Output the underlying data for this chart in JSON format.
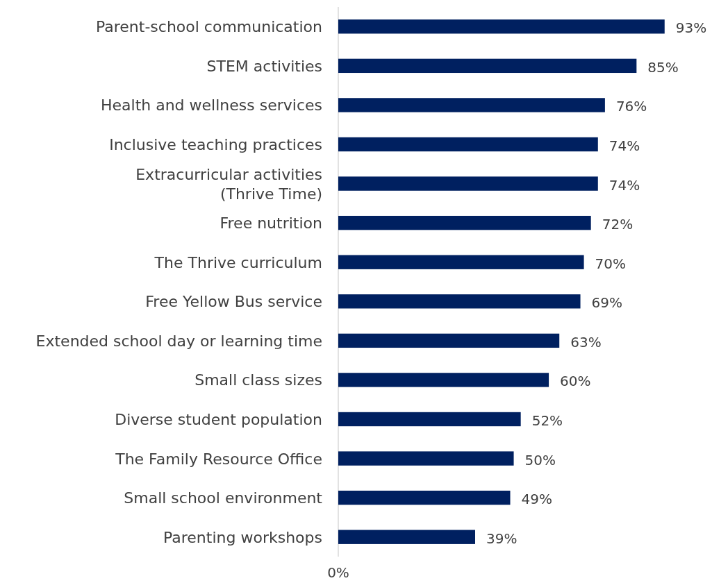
{
  "chart_data": {
    "type": "bar",
    "orientation": "horizontal",
    "categories": [
      "Parent-school communication",
      "STEM activities",
      "Health and wellness services",
      "Inclusive teaching practices",
      "Extracurricular activities\n(Thrive Time)",
      "Free nutrition",
      "The Thrive curriculum",
      "Free Yellow Bus service",
      "Extended school day or learning time",
      "Small class sizes",
      "Diverse student population",
      "The Family Resource Office",
      "Small school environment",
      "Parenting workshops"
    ],
    "values": [
      93,
      85,
      76,
      74,
      74,
      72,
      70,
      69,
      63,
      60,
      52,
      50,
      49,
      39
    ],
    "value_labels": [
      "93%",
      "85%",
      "76%",
      "74%",
      "74%",
      "72%",
      "70%",
      "69%",
      "63%",
      "60%",
      "52%",
      "50%",
      "49%",
      "39%"
    ],
    "color": "#002060",
    "annotations": [
      "0%"
    ]
  }
}
